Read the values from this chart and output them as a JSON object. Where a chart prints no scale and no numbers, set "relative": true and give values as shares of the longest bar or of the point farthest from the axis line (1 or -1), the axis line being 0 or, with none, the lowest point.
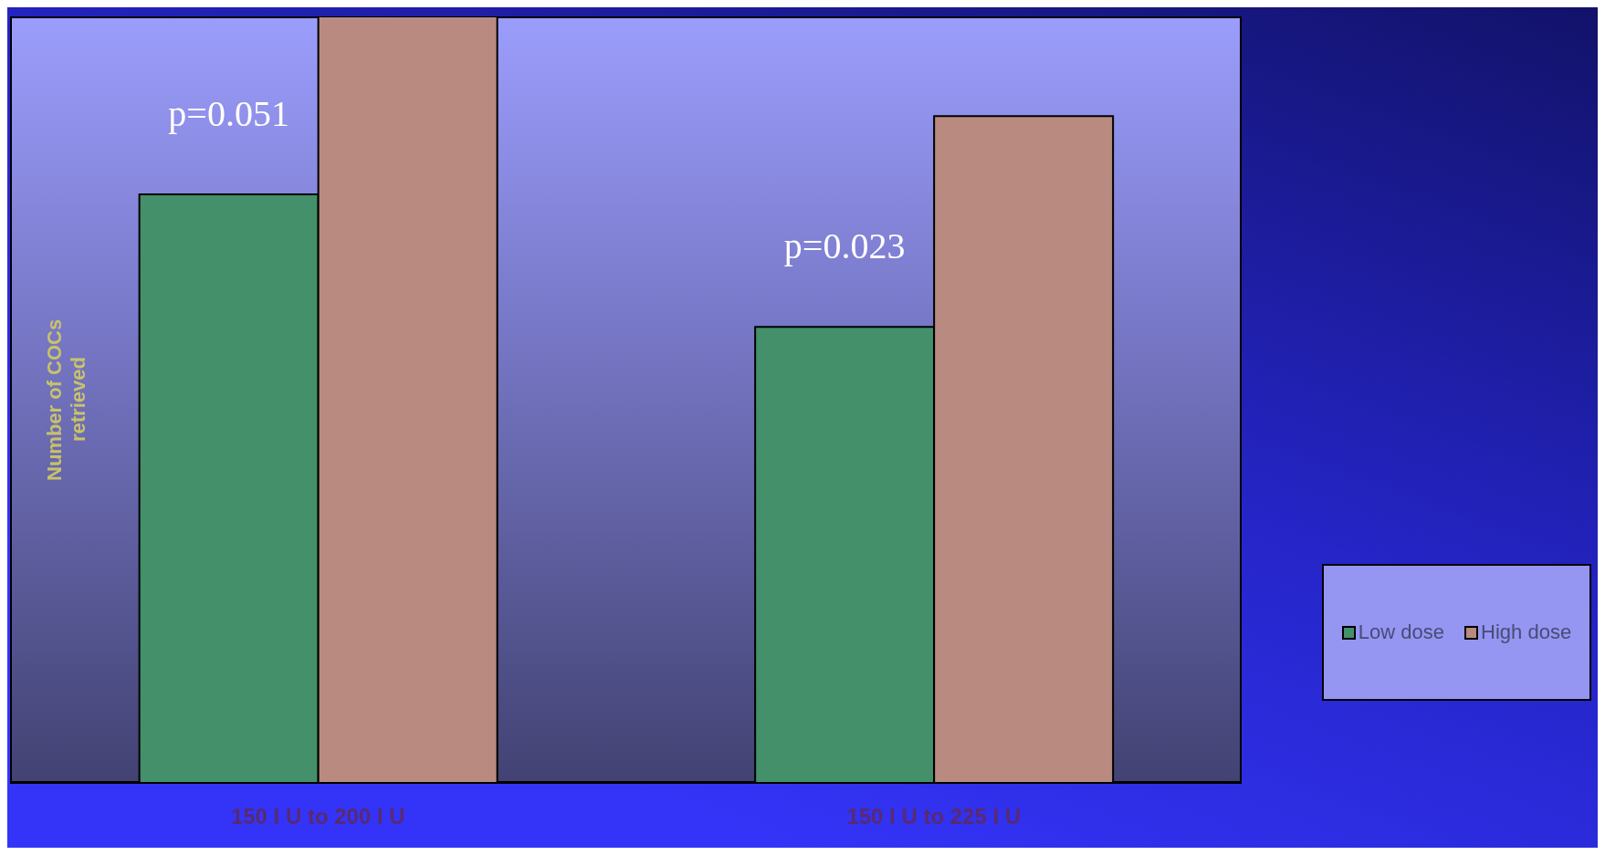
{
  "chart_data": {
    "type": "bar",
    "relative": true,
    "ylabel": "Number of COCs retrieved",
    "categories": [
      "150 I U to 200 I U",
      "150 I U to 225 I U"
    ],
    "series": [
      {
        "name": "Low dose",
        "color": "#43906a",
        "values": [
          0.768,
          0.595
        ]
      },
      {
        "name": "High dose",
        "color": "#b98b80",
        "values": [
          1,
          0.87
        ]
      }
    ],
    "annotations": [
      "p=0.051",
      "p=0.023"
    ],
    "legend": "right"
  }
}
